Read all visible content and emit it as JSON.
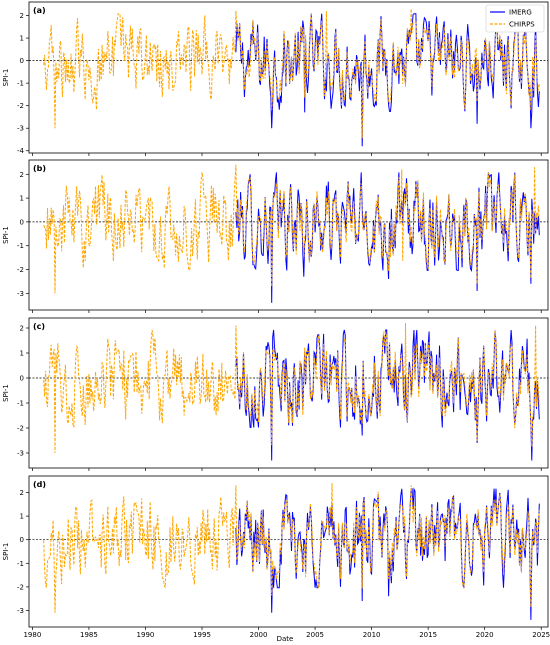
{
  "chart_data": {
    "type": "line",
    "xlabel": "Date",
    "ylabel": "SPI-1",
    "xlim": [
      1979.7,
      2025.6
    ],
    "x_ticks": [
      1980,
      1985,
      1990,
      1995,
      2000,
      2005,
      2010,
      2015,
      2020,
      2025
    ],
    "legend": {
      "placement": "top-right",
      "entries": [
        "IMERG",
        "CHIRPS"
      ]
    },
    "colors": {
      "IMERG": "#0000ff",
      "CHIRPS": "#ffa500",
      "zero_line": "#000000"
    },
    "series_meta": [
      {
        "name": "IMERG",
        "style": "solid",
        "start": 1998.0,
        "end": 2024.9
      },
      {
        "name": "CHIRPS",
        "style": "dashed",
        "start": 1981.0,
        "end": 2024.9
      }
    ],
    "panels": [
      {
        "label": "(a)",
        "ylim": [
          -4.1,
          2.6
        ],
        "y_ticks": [
          -4,
          -3,
          -2,
          -1,
          0,
          1,
          2
        ],
        "imerg_extremes": [
          [
            2001.2,
            -3.0
          ],
          [
            2004.1,
            -2.3
          ],
          [
            2009.2,
            -3.8
          ],
          [
            2019.3,
            -2.8
          ],
          [
            2024.1,
            -3.0
          ]
        ],
        "chirps_extremes": [
          [
            1982.0,
            -3.0
          ],
          [
            1998.0,
            2.2
          ],
          [
            2006.0,
            2.2
          ],
          [
            2013.5,
            2.3
          ]
        ]
      },
      {
        "label": "(b)",
        "ylim": [
          -3.7,
          2.6
        ],
        "y_ticks": [
          -3,
          -2,
          -1,
          0,
          1,
          2
        ],
        "imerg_extremes": [
          [
            2001.2,
            -3.4
          ],
          [
            2004.0,
            -2.3
          ],
          [
            2011.5,
            -2.4
          ],
          [
            2019.3,
            -2.9
          ],
          [
            2024.1,
            -2.6
          ]
        ],
        "chirps_extremes": [
          [
            1982.0,
            -3.0
          ],
          [
            1998.0,
            2.4
          ],
          [
            2012.7,
            2.2
          ],
          [
            2024.4,
            2.3
          ]
        ]
      },
      {
        "label": "(c)",
        "ylim": [
          -3.6,
          2.4
        ],
        "y_ticks": [
          -3,
          -2,
          -1,
          0,
          1,
          2
        ],
        "imerg_extremes": [
          [
            2001.2,
            -3.3
          ],
          [
            2009.2,
            -2.3
          ],
          [
            2019.3,
            -2.6
          ],
          [
            2024.2,
            -3.3
          ]
        ],
        "chirps_extremes": [
          [
            1982.0,
            -3.0
          ],
          [
            1998.0,
            2.1
          ],
          [
            2013.0,
            2.2
          ],
          [
            2024.5,
            2.1
          ]
        ]
      },
      {
        "label": "(d)",
        "ylim": [
          -3.7,
          2.7
        ],
        "y_ticks": [
          -3,
          -2,
          -1,
          0,
          1,
          2
        ],
        "imerg_extremes": [
          [
            2001.2,
            -3.1
          ],
          [
            2009.2,
            -2.6
          ],
          [
            2011.5,
            -2.4
          ],
          [
            2024.1,
            -3.4
          ]
        ],
        "chirps_extremes": [
          [
            1982.0,
            -3.1
          ],
          [
            1998.0,
            2.3
          ],
          [
            2006.5,
            2.4
          ],
          [
            2013.5,
            2.3
          ]
        ]
      }
    ]
  }
}
